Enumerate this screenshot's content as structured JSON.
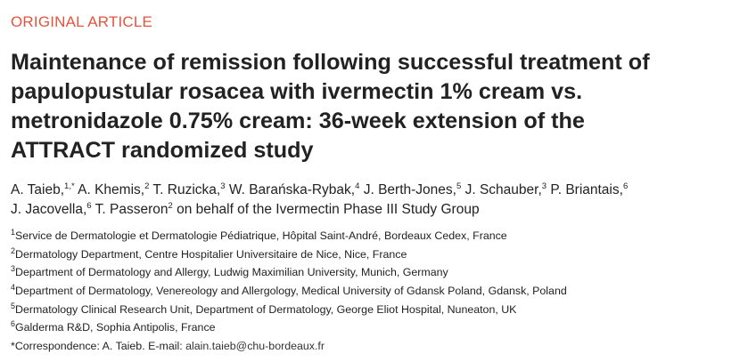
{
  "article_type": "ORIGINAL ARTICLE",
  "title": {
    "line1": "Maintenance of remission following successful treatment of",
    "line2": "papulopustular rosacea with ivermectin 1% cream vs.",
    "line3": "metronidazole 0.75% cream: 36-week extension of the",
    "line4": "ATTRACT randomized study"
  },
  "authors": [
    {
      "name": "A. Taieb,",
      "sup": "1,*",
      "sep": " "
    },
    {
      "name": "A. Khemis,",
      "sup": "2",
      "sep": " "
    },
    {
      "name": "T. Ruzicka,",
      "sup": "3",
      "sep": " "
    },
    {
      "name": "W. Barańska-Rybak,",
      "sup": "4",
      "sep": " "
    },
    {
      "name": "J. Berth-Jones,",
      "sup": "5",
      "sep": " "
    },
    {
      "name": "J. Schauber,",
      "sup": "3",
      "sep": " "
    },
    {
      "name": "P. Briantais,",
      "sup": "6",
      "sep": ""
    },
    {
      "name": "J. Jacovella,",
      "sup": "6",
      "sep": " "
    },
    {
      "name": "T. Passeron",
      "sup": "2",
      "sep": " "
    }
  ],
  "authors_suffix": "on behalf of the Ivermectin Phase III Study Group",
  "affiliations": [
    {
      "num": "1",
      "text": "Service de Dermatologie et Dermatologie Pédiatrique, Hôpital Saint-André, Bordeaux Cedex, France"
    },
    {
      "num": "2",
      "text": "Dermatology Department, Centre Hospitalier Universitaire de Nice, Nice, France"
    },
    {
      "num": "3",
      "text": "Department of Dermatology and Allergy, Ludwig Maximilian University, Munich, Germany"
    },
    {
      "num": "4",
      "text": "Department of Dermatology, Venereology and Allergology, Medical University of Gdansk Poland, Gdansk, Poland"
    },
    {
      "num": "5",
      "text": "Dermatology Clinical Research Unit, Department of Dermatology, George Eliot Hospital, Nuneaton, UK"
    },
    {
      "num": "6",
      "text": "Galderma R&D, Sophia Antipolis, France"
    }
  ],
  "correspondence": {
    "star": "*",
    "label": "Correspondence:",
    "name": "A. Taieb.",
    "email_label": "E-mail:",
    "email": "alain.taieb@chu-bordeaux.fr"
  }
}
